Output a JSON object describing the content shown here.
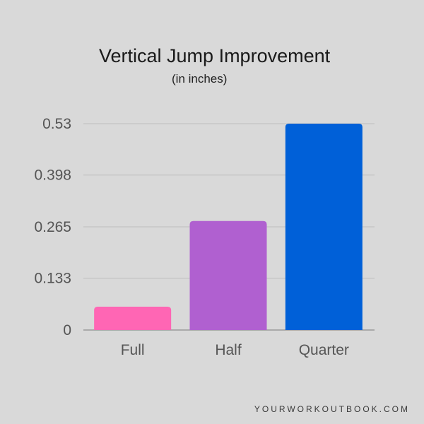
{
  "chart_data": {
    "type": "bar",
    "title": "Vertical Jump Improvement",
    "subtitle": "(in inches)",
    "categories": [
      "Full",
      "Half",
      "Quarter"
    ],
    "values": [
      0.06,
      0.28,
      0.53
    ],
    "yticks": [
      "0",
      "0.133",
      "0.265",
      "0.398",
      "0.53"
    ],
    "ylim": [
      0,
      0.53
    ],
    "grid": true,
    "legend": "none",
    "colors": [
      "#ff66b4",
      "#b060d0",
      "#0060d8"
    ]
  },
  "footer": {
    "watermark": "YOURWORKOUTBOOK.COM"
  }
}
